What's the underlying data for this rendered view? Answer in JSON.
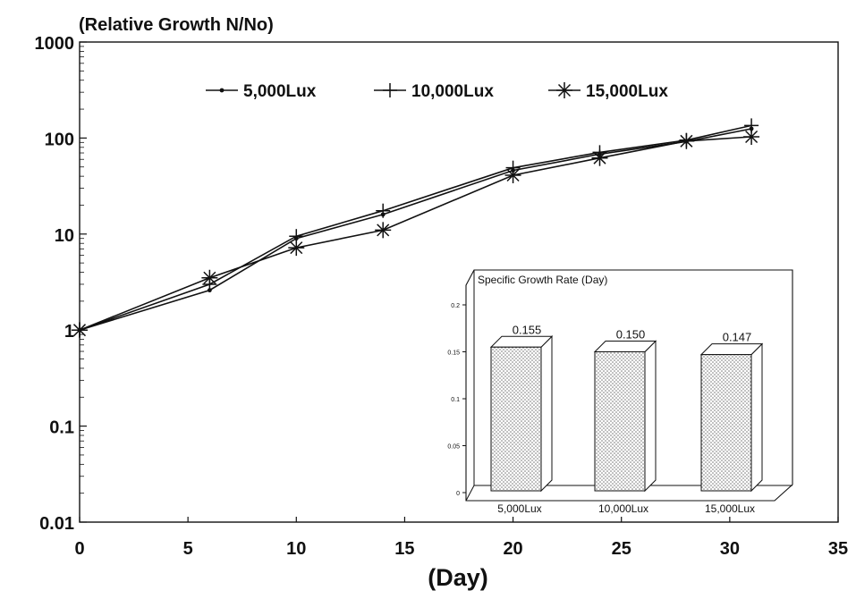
{
  "chart_data": [
    {
      "type": "line",
      "title": "",
      "ylabel": "(Relative Growth N/No)",
      "xlabel": "(Day)",
      "y_scale": "log",
      "ylim": [
        0.01,
        1000
      ],
      "xlim": [
        0,
        35
      ],
      "x_ticks": [
        0,
        5,
        10,
        15,
        20,
        25,
        30,
        35
      ],
      "y_ticks": [
        0.01,
        0.1,
        1,
        10,
        100,
        1000
      ],
      "y_tick_labels": [
        "0.01",
        "0.1",
        "1",
        "10",
        "100",
        "1000"
      ],
      "grid": false,
      "legend_position": "top",
      "series": [
        {
          "name": "5,000Lux",
          "marker": "dot",
          "x": [
            0,
            6,
            10,
            14,
            20,
            24,
            28,
            31
          ],
          "y": [
            1,
            2.6,
            9,
            16,
            46,
            68,
            92,
            125
          ]
        },
        {
          "name": "10,000Lux",
          "marker": "plus",
          "x": [
            0,
            6,
            10,
            14,
            20,
            24,
            28,
            31
          ],
          "y": [
            1,
            3.0,
            9.5,
            17.5,
            49,
            71,
            95,
            135
          ]
        },
        {
          "name": "15,000Lux",
          "marker": "asterisk",
          "x": [
            0,
            6,
            10,
            14,
            20,
            24,
            28,
            31
          ],
          "y": [
            1,
            3.5,
            7.2,
            11,
            41,
            62,
            93,
            103
          ]
        }
      ]
    },
    {
      "type": "bar",
      "title": "Specific Growth Rate (Day)",
      "categories": [
        "5,000Lux",
        "10,000Lux",
        "15,000Lux"
      ],
      "values": [
        0.155,
        0.15,
        0.147
      ],
      "value_labels": [
        "0.155",
        "0.150",
        "0.147"
      ],
      "ylim": [
        0,
        0.2
      ],
      "y_ticks": [
        0,
        0.05,
        0.1,
        0.15,
        0.2
      ],
      "y_tick_labels": [
        "0",
        "0.05",
        "0.1",
        "0.15",
        "0.2"
      ],
      "style": "3d-dotted",
      "grid": false
    }
  ]
}
